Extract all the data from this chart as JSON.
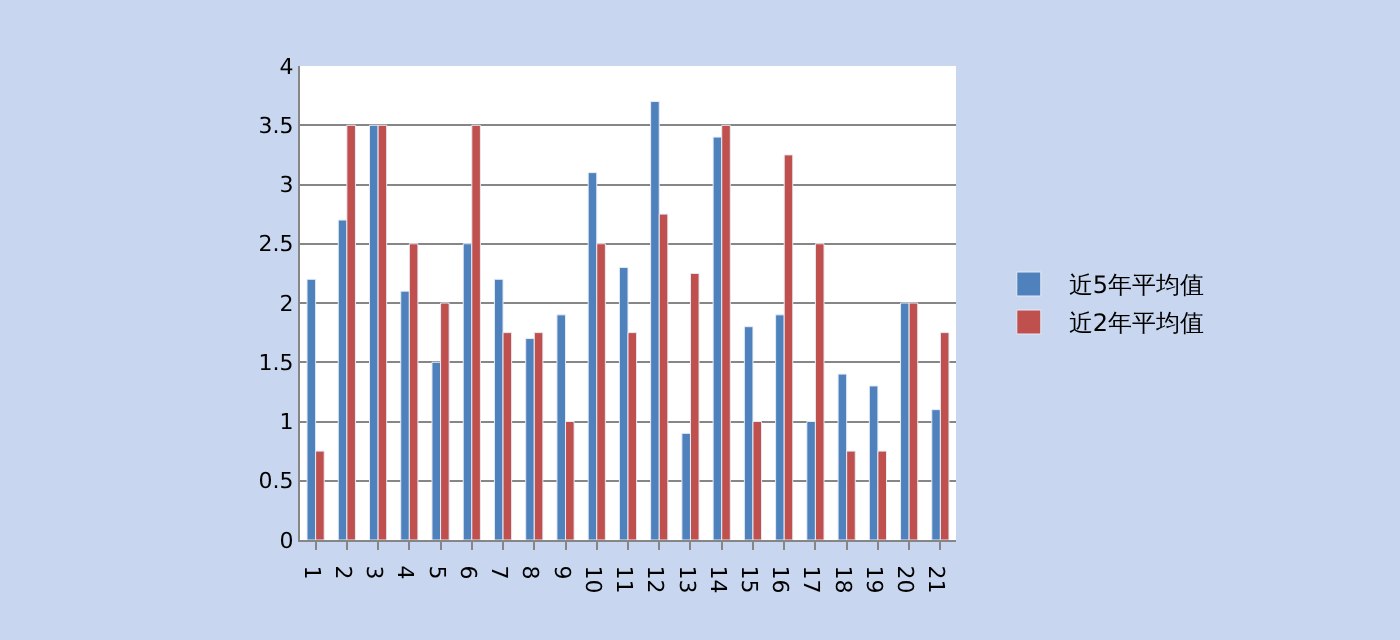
{
  "chart_data": {
    "type": "bar",
    "categories": [
      "1",
      "2",
      "3",
      "4",
      "5",
      "6",
      "7",
      "8",
      "9",
      "10",
      "11",
      "12",
      "13",
      "14",
      "15",
      "16",
      "17",
      "18",
      "19",
      "20",
      "21"
    ],
    "series": [
      {
        "name": "近5年平均值",
        "color": "#4f81bd",
        "values": [
          2.2,
          2.7,
          3.5,
          2.1,
          1.5,
          2.5,
          2.2,
          1.7,
          1.9,
          3.1,
          2.3,
          3.7,
          0.9,
          3.4,
          1.8,
          1.9,
          1.0,
          1.4,
          1.3,
          2.0,
          1.1
        ]
      },
      {
        "name": "近2年平均值",
        "color": "#c0504d",
        "values": [
          0.75,
          3.5,
          3.5,
          2.5,
          2.0,
          3.5,
          1.75,
          1.75,
          1.0,
          2.5,
          1.75,
          2.75,
          2.25,
          3.5,
          1.0,
          3.25,
          2.5,
          0.75,
          0.75,
          2.0,
          1.75
        ]
      }
    ],
    "ylim": [
      0,
      4
    ],
    "yticks": [
      0,
      0.5,
      1,
      1.5,
      2,
      2.5,
      3,
      3.5,
      4
    ],
    "grid": "y",
    "legend": "right"
  }
}
